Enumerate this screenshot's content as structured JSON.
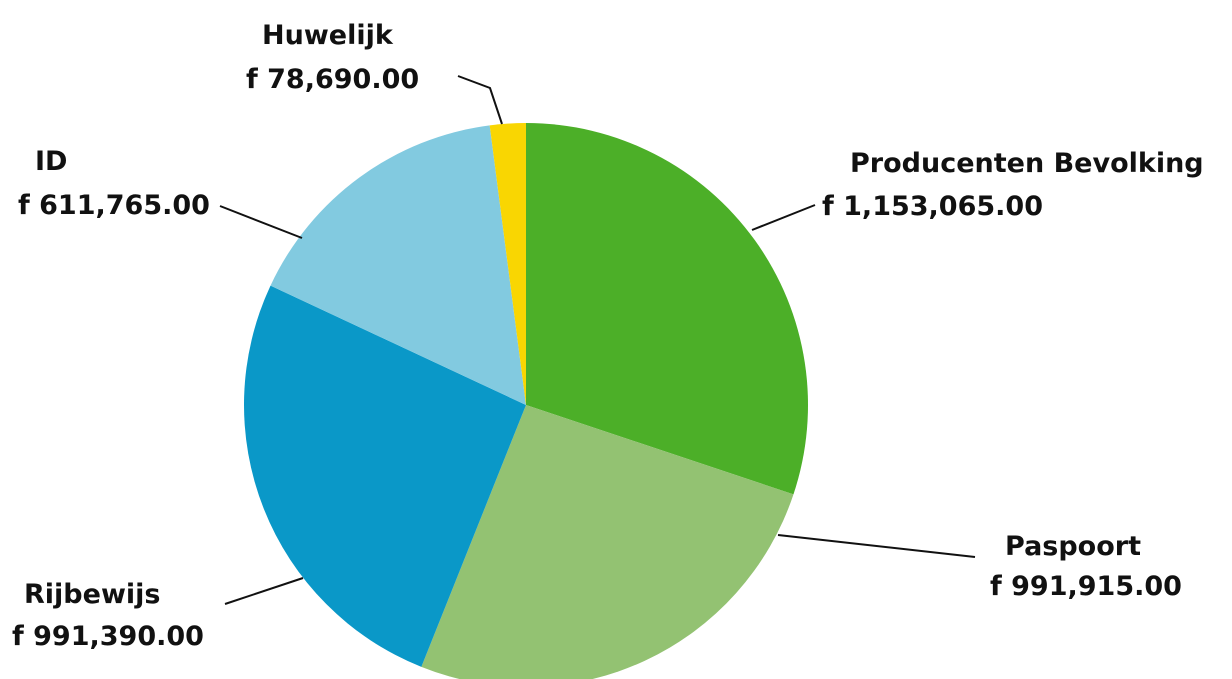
{
  "chart_data": {
    "type": "pie",
    "currency_prefix": "f",
    "slices": [
      {
        "name": "Producenten Bevolking",
        "value": 1153065.0,
        "display": "1,153,065.00",
        "color": "#4caf28"
      },
      {
        "name": "Paspoort",
        "value": 991915.0,
        "display": "991,915.00",
        "color": "#93c272"
      },
      {
        "name": "Rijbewijs",
        "value": 991390.0,
        "display": "991,390.00",
        "color": "#0a98c8"
      },
      {
        "name": "ID",
        "value": 611765.0,
        "display": "611,765.00",
        "color": "#82cae0"
      },
      {
        "name": "Huwelijk",
        "value": 78690.0,
        "display": "78,690.00",
        "color": "#f9d602"
      }
    ],
    "start_angle_deg": 0,
    "direction": "clockwise",
    "legend": "none",
    "labels": "outside-with-leaders"
  }
}
